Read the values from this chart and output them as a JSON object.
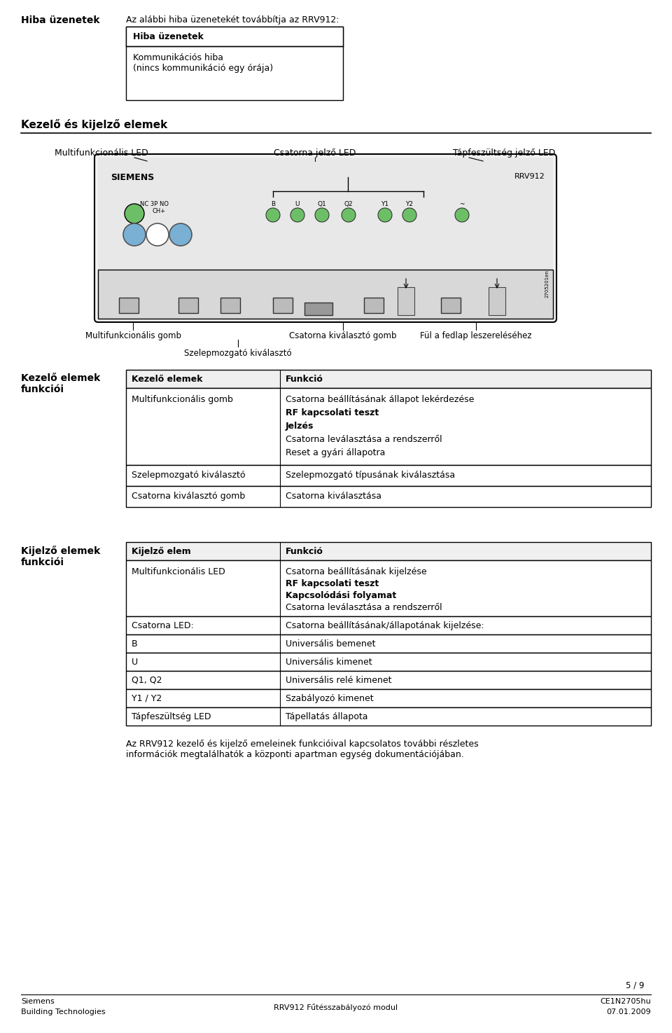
{
  "bg_color": "#ffffff",
  "text_color": "#000000",
  "font_family": "DejaVu Sans",
  "section1_left_label": "Hiba üzenetek",
  "section1_right_text": "Az alábbi hiba üzenetekét továbbítja az RRV912:",
  "box1_header": "Hiba üzenetek",
  "box1_content": "Kommunikációs hiba\n(nincs kommunikáció egy órája)",
  "section2_header": "Kezelő és kijelző elemek",
  "led_label1": "Multifunkcionális LED",
  "led_label2": "Csatorna jelző LED",
  "led_label3": "Tápfeszültség jelző LED",
  "device_brand": "SIEMENS",
  "device_model": "RRV912",
  "bottom_label1": "Multifunkcionális gomb",
  "bottom_label2": "Szelepmozgató kiválasztó",
  "bottom_label3": "Csatorna kiválasztó gomb",
  "bottom_label4": "Fül a fedlap leszereléséhez",
  "section3_left": "Kezelő elemek\nfunkciói",
  "table1_headers": [
    "Kezelő elemek",
    "Funkció"
  ],
  "table1_rows": [
    [
      "Multifunkcionális gomb",
      "Csatorna beállításának állapot lekérdezése\nRF kapcsolati teszt\nJelzés\nCsatorna leválasztása a rendszerről\nReset a gyári állapotra"
    ],
    [
      "Szelepmozgató kiválasztó",
      "Szelepmozgató típusának kiválasztása"
    ],
    [
      "Csatorna kiválasztó gomb",
      "Csatorna kiválasztása"
    ]
  ],
  "section4_left": "Kijelző elemek\nfunkciói",
  "table2_headers": [
    "Kijelző elem",
    "Funkció"
  ],
  "table2_rows": [
    [
      "Multifunkcionális LED",
      "Csatorna beállításának kijelzése\nRF kapcsolati teszt\nKapcsolódási folyamat\nCsatorna leválasztása a rendszerről"
    ],
    [
      "Csatorna LED:",
      "Csatorna beállításának/állapotának kijelzése:"
    ],
    [
      "B",
      "Universális bemenet"
    ],
    [
      "U",
      "Universális kimenet"
    ],
    [
      "Q1, Q2",
      "Universális relé kimenet"
    ],
    [
      "Y1 / Y2",
      "Szabályozó kimenet"
    ],
    [
      "Tápfeszültség LED",
      "Tápellatás állapota"
    ]
  ],
  "footer_text": "Az RRV912 kezelő és kijelző emeleinek funkcióival kapcsolatos további részletes\ninformációk megtalálhatók a központi apartman egység dokumentációjában.",
  "page_num": "5 / 9",
  "footer_left1": "Siemens",
  "footer_left2": "Building Technologies",
  "footer_center": "RRV912 Fűtésszabályozó modul",
  "footer_right": "CE1N2705hu\n07.01.2009"
}
